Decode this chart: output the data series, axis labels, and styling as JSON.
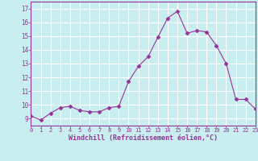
{
  "hours": [
    0,
    1,
    2,
    3,
    4,
    5,
    6,
    7,
    8,
    9,
    10,
    11,
    12,
    13,
    14,
    15,
    16,
    17,
    18,
    19,
    20,
    21,
    22,
    23
  ],
  "values": [
    9.2,
    8.9,
    9.4,
    9.8,
    9.9,
    9.6,
    9.5,
    9.5,
    9.8,
    9.9,
    11.7,
    12.8,
    13.5,
    14.9,
    16.3,
    16.8,
    15.2,
    15.4,
    15.3,
    14.3,
    13.0,
    10.4,
    10.4,
    9.7
  ],
  "xlim": [
    0,
    23
  ],
  "ylim": [
    8.5,
    17.5
  ],
  "yticks": [
    9,
    10,
    11,
    12,
    13,
    14,
    15,
    16,
    17
  ],
  "xticks": [
    0,
    1,
    2,
    3,
    4,
    5,
    6,
    7,
    8,
    9,
    10,
    11,
    12,
    13,
    14,
    15,
    16,
    17,
    18,
    19,
    20,
    21,
    22,
    23
  ],
  "xlabel": "Windchill (Refroidissement éolien,°C)",
  "line_color": "#993399",
  "marker": "D",
  "marker_size": 2.5,
  "bg_color": "#c8eef0",
  "grid_color": "#ffffff",
  "tick_color": "#993399",
  "label_color": "#993399"
}
